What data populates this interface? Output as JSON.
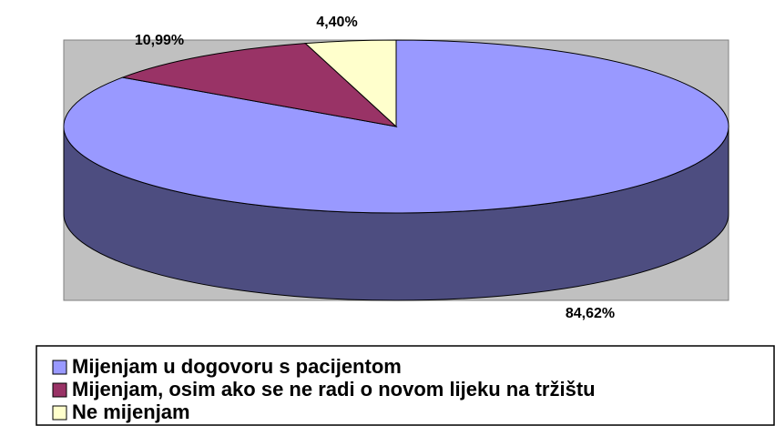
{
  "chart_data": {
    "type": "pie",
    "categories": [
      "Mijenjam u dogovoru s pacijentom",
      "Mijenjam, osim ako se ne radi o novom lijeku na tržištu",
      "Ne mijenjam"
    ],
    "values": [
      84.62,
      10.99,
      4.4
    ],
    "value_labels": [
      "84,62%",
      "10,99%",
      "4,40%"
    ],
    "colors": [
      "#9999ff",
      "#993366",
      "#ffffcc"
    ],
    "side_color": "#4d4d80",
    "legend": "bottom"
  }
}
